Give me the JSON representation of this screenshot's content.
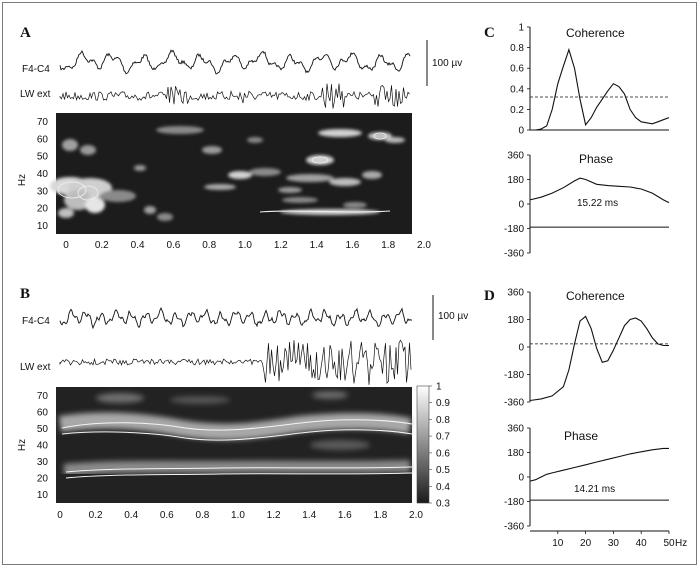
{
  "panels": {
    "A": {
      "label": "A",
      "trace1_label": "F4-C4",
      "trace2_label": "LW ext",
      "scale_label": "100 µv",
      "ylabel": "Hz",
      "yticks": [
        "70",
        "60",
        "50",
        "40",
        "30",
        "20",
        "10"
      ],
      "xticks": [
        "0",
        "0.2",
        "0.4",
        "0.6",
        "0.8",
        "1.0",
        "1.2",
        "1.4",
        "1.6",
        "1.8",
        "2.0"
      ]
    },
    "B": {
      "label": "B",
      "trace1_label": "F4-C4",
      "trace2_label": "LW ext",
      "scale_label": "100 µv",
      "ylabel": "Hz",
      "yticks": [
        "70",
        "60",
        "50",
        "40",
        "30",
        "20",
        "10"
      ],
      "xticks": [
        "0",
        "0.2",
        "0.4",
        "0.6",
        "0.8",
        "1.0",
        "1.2",
        "1.4",
        "1.6",
        "1.8",
        "2.0"
      ],
      "colorbar_ticks": [
        "1",
        "0.9",
        "0.8",
        "0.7",
        "0.6",
        "0.5",
        "0.4",
        "0.3"
      ]
    },
    "C": {
      "label": "C",
      "coherence_title": "Coherence",
      "phase_title": "Phase",
      "delay_label": "15.22 ms",
      "coh_yticks": [
        "1",
        "0.8",
        "0.6",
        "0.4",
        "0.2",
        "0"
      ],
      "phase_yticks": [
        "360",
        "180",
        "0",
        "-180",
        "-360"
      ]
    },
    "D": {
      "label": "D",
      "coherence_title": "Coherence",
      "phase_title": "Phase",
      "delay_label": "14.21 ms",
      "coh_yticks": [
        "360",
        "180",
        "0",
        "-180",
        "-360"
      ],
      "phase_yticks": [
        "360",
        "180",
        "0",
        "-180",
        "-360"
      ],
      "xticks": [
        "10",
        "20",
        "30",
        "40",
        "50"
      ],
      "x_unit": "Hz"
    }
  },
  "chart_data": [
    {
      "type": "line",
      "panel": "C-coherence",
      "title": "Coherence",
      "x": [
        0,
        2,
        4,
        6,
        8,
        10,
        12,
        14,
        16,
        18,
        20,
        22,
        24,
        26,
        28,
        30,
        32,
        34,
        36,
        38,
        40,
        42,
        44,
        46,
        48,
        50
      ],
      "series": [
        {
          "values": [
            0,
            0,
            0.01,
            0.04,
            0.2,
            0.45,
            0.62,
            0.78,
            0.6,
            0.3,
            0.05,
            0.12,
            0.22,
            0.3,
            0.38,
            0.45,
            0.42,
            0.35,
            0.2,
            0.12,
            0.08,
            0.07,
            0.06,
            0.08,
            0.1,
            0.12
          ]
        }
      ],
      "threshold": 0.32,
      "xlim": [
        0,
        50
      ],
      "ylim": [
        0,
        1
      ]
    },
    {
      "type": "line",
      "panel": "C-phase",
      "title": "Phase",
      "annotation": "15.22 ms",
      "x": [
        0,
        4,
        8,
        12,
        16,
        18,
        20,
        24,
        28,
        32,
        36,
        40,
        44,
        48,
        50
      ],
      "series": [
        {
          "values": [
            30,
            50,
            80,
            120,
            170,
            190,
            180,
            145,
            135,
            130,
            125,
            110,
            80,
            30,
            10
          ]
        }
      ],
      "reference": -170,
      "xlim": [
        0,
        50
      ],
      "ylim": [
        -360,
        360
      ]
    },
    {
      "type": "line",
      "panel": "D-coherence",
      "title": "Coherence",
      "x": [
        0,
        4,
        8,
        12,
        14,
        16,
        18,
        20,
        22,
        24,
        26,
        28,
        30,
        32,
        34,
        36,
        38,
        40,
        42,
        44,
        46,
        48,
        50
      ],
      "series": [
        {
          "values": [
            -350,
            -340,
            -320,
            -260,
            -150,
            20,
            170,
            200,
            120,
            -10,
            -100,
            -90,
            -20,
            60,
            140,
            180,
            190,
            170,
            120,
            60,
            20,
            10,
            10
          ]
        }
      ],
      "threshold": 20,
      "xlim": [
        0,
        50
      ],
      "ylim": [
        -360,
        360
      ]
    },
    {
      "type": "line",
      "panel": "D-phase",
      "title": "Phase",
      "annotation": "14.21 ms",
      "x": [
        0,
        2,
        4,
        6,
        8,
        12,
        16,
        20,
        24,
        28,
        32,
        36,
        40,
        44,
        48,
        50
      ],
      "series": [
        {
          "values": [
            -30,
            -20,
            0,
            20,
            30,
            50,
            70,
            90,
            110,
            130,
            150,
            170,
            185,
            200,
            210,
            210
          ]
        }
      ],
      "reference": -170,
      "xlim": [
        0,
        50
      ],
      "ylim": [
        -360,
        360
      ]
    }
  ]
}
